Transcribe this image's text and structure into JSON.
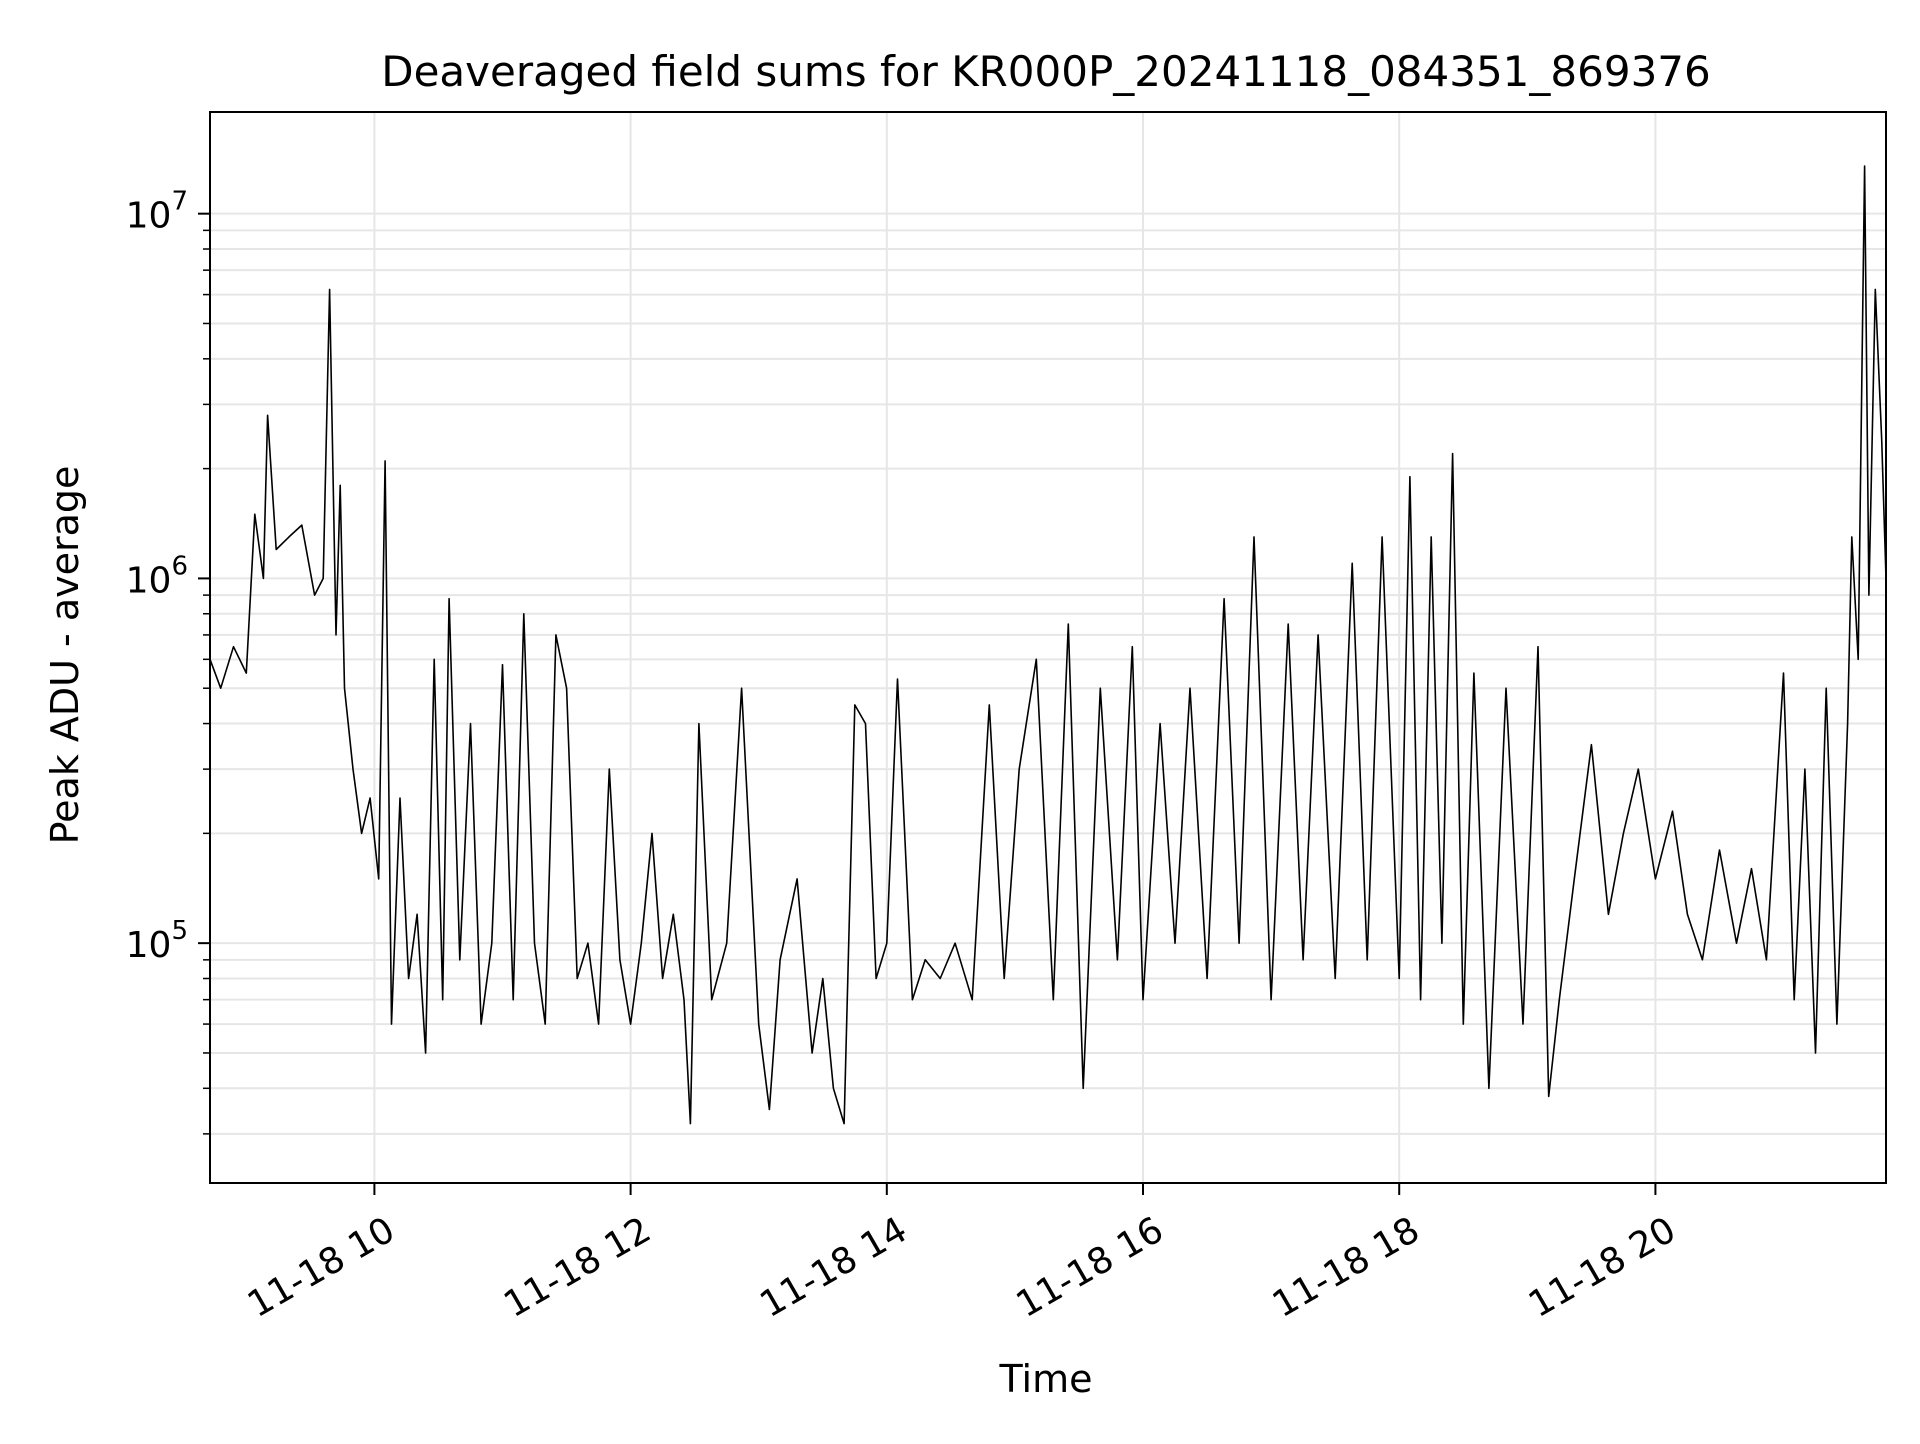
{
  "chart_data": {
    "type": "line",
    "title": "Deaveraged field sums for KR000P_20241118_084351_869376",
    "xlabel": "Time",
    "ylabel": "Peak ADU - average",
    "yscale": "log",
    "x_range": [
      "2024-11-18 08:43",
      "2024-11-18 21:48"
    ],
    "ylim": [
      22000,
      19000000
    ],
    "grid": true,
    "colors": {
      "line": "#000000",
      "grid": "#e6e6e6",
      "axes": "#000000"
    },
    "x_ticks": [
      {
        "time": "2024-11-18 10:00",
        "label": "11-18 10"
      },
      {
        "time": "2024-11-18 12:00",
        "label": "11-18 12"
      },
      {
        "time": "2024-11-18 14:00",
        "label": "11-18 14"
      },
      {
        "time": "2024-11-18 16:00",
        "label": "11-18 16"
      },
      {
        "time": "2024-11-18 18:00",
        "label": "11-18 18"
      },
      {
        "time": "2024-11-18 20:00",
        "label": "11-18 20"
      }
    ],
    "y_ticks": [
      {
        "value": 100000,
        "base": "10",
        "exp": "5"
      },
      {
        "value": 1000000,
        "base": "10",
        "exp": "6"
      },
      {
        "value": 10000000,
        "base": "10",
        "exp": "7"
      }
    ],
    "series": [
      {
        "points": [
          [
            "2024-11-18 08:43",
            600000
          ],
          [
            "2024-11-18 08:48",
            500000
          ],
          [
            "2024-11-18 08:54",
            650000
          ],
          [
            "2024-11-18 09:00",
            550000
          ],
          [
            "2024-11-18 09:04",
            1500000
          ],
          [
            "2024-11-18 09:08",
            1000000
          ],
          [
            "2024-11-18 09:10",
            2800000
          ],
          [
            "2024-11-18 09:14",
            1200000
          ],
          [
            "2024-11-18 09:20",
            1300000
          ],
          [
            "2024-11-18 09:26",
            1400000
          ],
          [
            "2024-11-18 09:32",
            900000
          ],
          [
            "2024-11-18 09:36",
            1000000
          ],
          [
            "2024-11-18 09:39",
            6200000
          ],
          [
            "2024-11-18 09:42",
            700000
          ],
          [
            "2024-11-18 09:44",
            1800000
          ],
          [
            "2024-11-18 09:46",
            500000
          ],
          [
            "2024-11-18 09:50",
            300000
          ],
          [
            "2024-11-18 09:54",
            200000
          ],
          [
            "2024-11-18 09:58",
            250000
          ],
          [
            "2024-11-18 10:02",
            150000
          ],
          [
            "2024-11-18 10:05",
            2100000
          ],
          [
            "2024-11-18 10:08",
            60000
          ],
          [
            "2024-11-18 10:12",
            250000
          ],
          [
            "2024-11-18 10:16",
            80000
          ],
          [
            "2024-11-18 10:20",
            120000
          ],
          [
            "2024-11-18 10:24",
            50000
          ],
          [
            "2024-11-18 10:28",
            600000
          ],
          [
            "2024-11-18 10:32",
            70000
          ],
          [
            "2024-11-18 10:35",
            880000
          ],
          [
            "2024-11-18 10:40",
            90000
          ],
          [
            "2024-11-18 10:45",
            400000
          ],
          [
            "2024-11-18 10:50",
            60000
          ],
          [
            "2024-11-18 10:55",
            100000
          ],
          [
            "2024-11-18 11:00",
            580000
          ],
          [
            "2024-11-18 11:05",
            70000
          ],
          [
            "2024-11-18 11:10",
            800000
          ],
          [
            "2024-11-18 11:15",
            100000
          ],
          [
            "2024-11-18 11:20",
            60000
          ],
          [
            "2024-11-18 11:25",
            700000
          ],
          [
            "2024-11-18 11:30",
            500000
          ],
          [
            "2024-11-18 11:35",
            80000
          ],
          [
            "2024-11-18 11:40",
            100000
          ],
          [
            "2024-11-18 11:45",
            60000
          ],
          [
            "2024-11-18 11:50",
            300000
          ],
          [
            "2024-11-18 11:55",
            90000
          ],
          [
            "2024-11-18 12:00",
            60000
          ],
          [
            "2024-11-18 12:05",
            100000
          ],
          [
            "2024-11-18 12:10",
            200000
          ],
          [
            "2024-11-18 12:15",
            80000
          ],
          [
            "2024-11-18 12:20",
            120000
          ],
          [
            "2024-11-18 12:25",
            70000
          ],
          [
            "2024-11-18 12:28",
            32000
          ],
          [
            "2024-11-18 12:32",
            400000
          ],
          [
            "2024-11-18 12:38",
            70000
          ],
          [
            "2024-11-18 12:45",
            100000
          ],
          [
            "2024-11-18 12:52",
            500000
          ],
          [
            "2024-11-18 13:00",
            60000
          ],
          [
            "2024-11-18 13:05",
            35000
          ],
          [
            "2024-11-18 13:10",
            90000
          ],
          [
            "2024-11-18 13:18",
            150000
          ],
          [
            "2024-11-18 13:25",
            50000
          ],
          [
            "2024-11-18 13:30",
            80000
          ],
          [
            "2024-11-18 13:35",
            40000
          ],
          [
            "2024-11-18 13:40",
            32000
          ],
          [
            "2024-11-18 13:45",
            450000
          ],
          [
            "2024-11-18 13:50",
            400000
          ],
          [
            "2024-11-18 13:55",
            80000
          ],
          [
            "2024-11-18 14:00",
            100000
          ],
          [
            "2024-11-18 14:05",
            530000
          ],
          [
            "2024-11-18 14:12",
            70000
          ],
          [
            "2024-11-18 14:18",
            90000
          ],
          [
            "2024-11-18 14:25",
            80000
          ],
          [
            "2024-11-18 14:32",
            100000
          ],
          [
            "2024-11-18 14:40",
            70000
          ],
          [
            "2024-11-18 14:48",
            450000
          ],
          [
            "2024-11-18 14:55",
            80000
          ],
          [
            "2024-11-18 15:02",
            300000
          ],
          [
            "2024-11-18 15:10",
            600000
          ],
          [
            "2024-11-18 15:18",
            70000
          ],
          [
            "2024-11-18 15:25",
            750000
          ],
          [
            "2024-11-18 15:32",
            40000
          ],
          [
            "2024-11-18 15:40",
            500000
          ],
          [
            "2024-11-18 15:48",
            90000
          ],
          [
            "2024-11-18 15:55",
            650000
          ],
          [
            "2024-11-18 16:00",
            70000
          ],
          [
            "2024-11-18 16:08",
            400000
          ],
          [
            "2024-11-18 16:15",
            100000
          ],
          [
            "2024-11-18 16:22",
            500000
          ],
          [
            "2024-11-18 16:30",
            80000
          ],
          [
            "2024-11-18 16:38",
            880000
          ],
          [
            "2024-11-18 16:45",
            100000
          ],
          [
            "2024-11-18 16:52",
            1300000
          ],
          [
            "2024-11-18 17:00",
            70000
          ],
          [
            "2024-11-18 17:08",
            750000
          ],
          [
            "2024-11-18 17:15",
            90000
          ],
          [
            "2024-11-18 17:22",
            700000
          ],
          [
            "2024-11-18 17:30",
            80000
          ],
          [
            "2024-11-18 17:38",
            1100000
          ],
          [
            "2024-11-18 17:45",
            90000
          ],
          [
            "2024-11-18 17:52",
            1300000
          ],
          [
            "2024-11-18 18:00",
            80000
          ],
          [
            "2024-11-18 18:05",
            1900000
          ],
          [
            "2024-11-18 18:10",
            70000
          ],
          [
            "2024-11-18 18:15",
            1300000
          ],
          [
            "2024-11-18 18:20",
            100000
          ],
          [
            "2024-11-18 18:25",
            2200000
          ],
          [
            "2024-11-18 18:30",
            60000
          ],
          [
            "2024-11-18 18:35",
            550000
          ],
          [
            "2024-11-18 18:42",
            40000
          ],
          [
            "2024-11-18 18:50",
            500000
          ],
          [
            "2024-11-18 18:58",
            60000
          ],
          [
            "2024-11-18 19:05",
            650000
          ],
          [
            "2024-11-18 19:10",
            38000
          ],
          [
            "2024-11-18 19:15",
            70000
          ],
          [
            "2024-11-18 19:22",
            150000
          ],
          [
            "2024-11-18 19:30",
            350000
          ],
          [
            "2024-11-18 19:38",
            120000
          ],
          [
            "2024-11-18 19:45",
            200000
          ],
          [
            "2024-11-18 19:52",
            300000
          ],
          [
            "2024-11-18 20:00",
            150000
          ],
          [
            "2024-11-18 20:08",
            230000
          ],
          [
            "2024-11-18 20:15",
            120000
          ],
          [
            "2024-11-18 20:22",
            90000
          ],
          [
            "2024-11-18 20:30",
            180000
          ],
          [
            "2024-11-18 20:38",
            100000
          ],
          [
            "2024-11-18 20:45",
            160000
          ],
          [
            "2024-11-18 20:52",
            90000
          ],
          [
            "2024-11-18 21:00",
            550000
          ],
          [
            "2024-11-18 21:05",
            70000
          ],
          [
            "2024-11-18 21:10",
            300000
          ],
          [
            "2024-11-18 21:15",
            50000
          ],
          [
            "2024-11-18 21:20",
            500000
          ],
          [
            "2024-11-18 21:25",
            60000
          ],
          [
            "2024-11-18 21:30",
            400000
          ],
          [
            "2024-11-18 21:32",
            1300000
          ],
          [
            "2024-11-18 21:35",
            600000
          ],
          [
            "2024-11-18 21:38",
            13500000
          ],
          [
            "2024-11-18 21:40",
            900000
          ],
          [
            "2024-11-18 21:43",
            6200000
          ],
          [
            "2024-11-18 21:46",
            2400000
          ],
          [
            "2024-11-18 21:48",
            1000000
          ]
        ]
      }
    ]
  }
}
